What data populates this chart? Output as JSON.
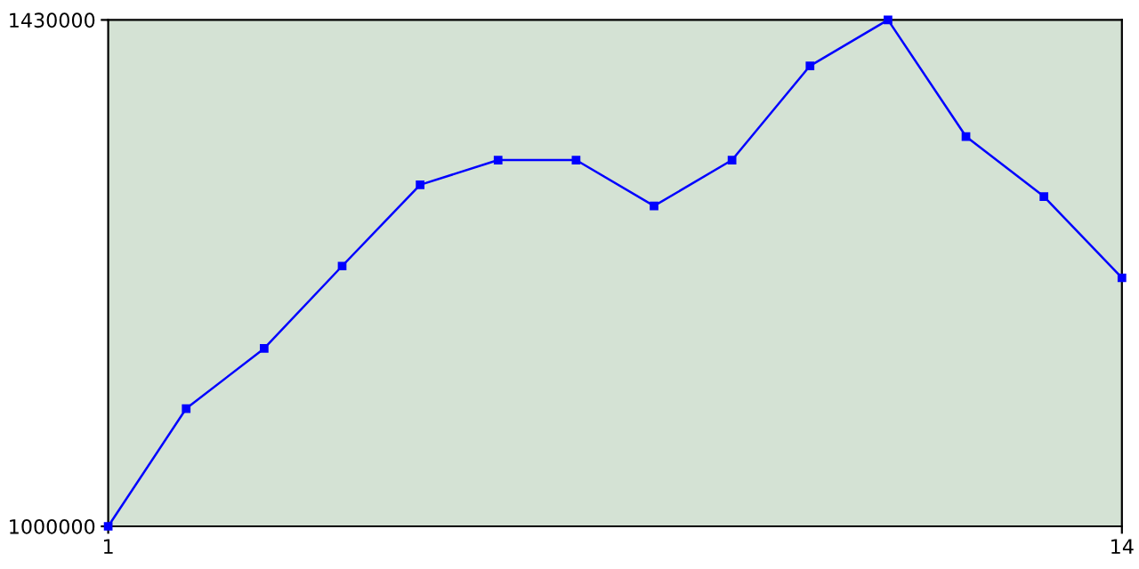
{
  "chart_data": {
    "type": "line",
    "x": [
      1,
      2,
      3,
      4,
      5,
      6,
      7,
      8,
      9,
      10,
      11,
      12,
      13,
      14
    ],
    "series": [
      {
        "color": "#0000ff",
        "values": [
          1000000,
          1100000,
          1151000,
          1221000,
          1290000,
          1311000,
          1311000,
          1272000,
          1311000,
          1391000,
          1430000,
          1331000,
          1280000,
          1211000
        ]
      }
    ],
    "xlim": [
      1,
      14
    ],
    "xticks": [
      1,
      14
    ],
    "ylim": [
      1000000,
      1430000
    ],
    "yticks": [
      1000000,
      1430000
    ],
    "marker": "square",
    "line_style": "solid"
  }
}
